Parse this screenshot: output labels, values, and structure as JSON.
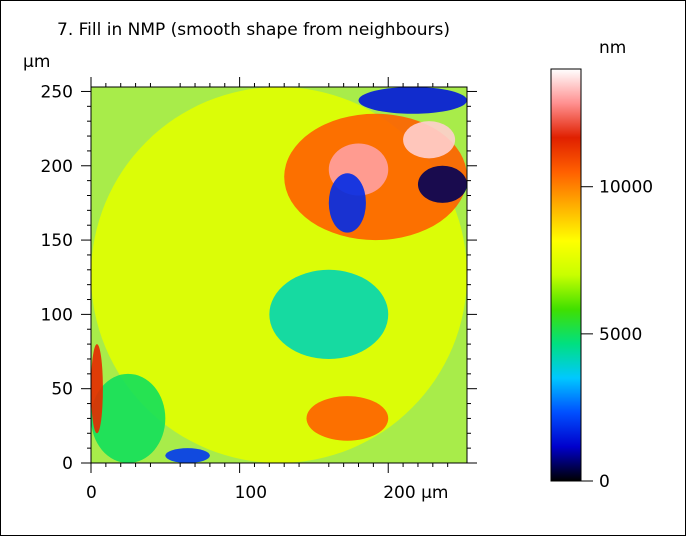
{
  "chart_data": {
    "type": "heatmap",
    "title": "7. Fill in NMP (smooth shape from neighbours)",
    "x_unit": "µm",
    "y_unit": "µm",
    "xlim": [
      0,
      253
    ],
    "ylim": [
      0,
      253
    ],
    "x_ticks": [
      {
        "value": 0,
        "label": "0"
      },
      {
        "value": 100,
        "label": "100"
      },
      {
        "value": 200,
        "label": "200 µm"
      }
    ],
    "y_ticks": [
      {
        "value": 0,
        "label": "0"
      },
      {
        "value": 50,
        "label": "50"
      },
      {
        "value": 100,
        "label": "100"
      },
      {
        "value": 150,
        "label": "150"
      },
      {
        "value": 200,
        "label": "200"
      },
      {
        "value": 250,
        "label": "250"
      }
    ],
    "colorbar": {
      "unit": "nm",
      "range": [
        0,
        14000
      ],
      "ticks": [
        {
          "value": 0,
          "label": "0"
        },
        {
          "value": 5000,
          "label": "5000"
        },
        {
          "value": 10000,
          "label": "10000"
        }
      ],
      "colors": [
        "#000000",
        "#0000cc",
        "#0050ff",
        "#00c8ff",
        "#00e080",
        "#40e000",
        "#c8ff00",
        "#ffff00",
        "#ffb000",
        "#ff6000",
        "#e02000",
        "#ff9090",
        "#ffffff"
      ]
    },
    "height_map_description_regions": [
      {
        "x": [
          0,
          253
        ],
        "y": [
          0,
          253
        ],
        "level_nm": 7500,
        "note": "general yellow-green surface"
      },
      {
        "x": [
          130,
          253
        ],
        "y": [
          150,
          235
        ],
        "level_nm": 10500,
        "note": "orange-red ridge top right"
      },
      {
        "x": [
          160,
          200
        ],
        "y": [
          180,
          215
        ],
        "level_nm": 13000,
        "note": "white-pink peak"
      },
      {
        "x": [
          210,
          245
        ],
        "y": [
          205,
          230
        ],
        "level_nm": 13500,
        "note": "white-pink peak"
      },
      {
        "x": [
          160,
          185
        ],
        "y": [
          155,
          195
        ],
        "level_nm": 1800,
        "note": "dark blue valley"
      },
      {
        "x": [
          220,
          253
        ],
        "y": [
          175,
          200
        ],
        "level_nm": 500,
        "note": "dark navy valley"
      },
      {
        "x": [
          180,
          253
        ],
        "y": [
          235,
          253
        ],
        "level_nm": 1500,
        "note": "blue valley top edge"
      },
      {
        "x": [
          120,
          200
        ],
        "y": [
          70,
          130
        ],
        "level_nm": 4200,
        "note": "cyan band"
      },
      {
        "x": [
          0,
          50
        ],
        "y": [
          0,
          60
        ],
        "level_nm": 5000,
        "note": "cyan bottom left"
      },
      {
        "x": [
          0,
          8
        ],
        "y": [
          20,
          80
        ],
        "level_nm": 11500,
        "note": "red left edge"
      },
      {
        "x": [
          145,
          200
        ],
        "y": [
          15,
          45
        ],
        "level_nm": 10500,
        "note": "orange patch bottom"
      },
      {
        "x": [
          50,
          80
        ],
        "y": [
          0,
          10
        ],
        "level_nm": 2000,
        "note": "blue bottom edge"
      }
    ]
  }
}
